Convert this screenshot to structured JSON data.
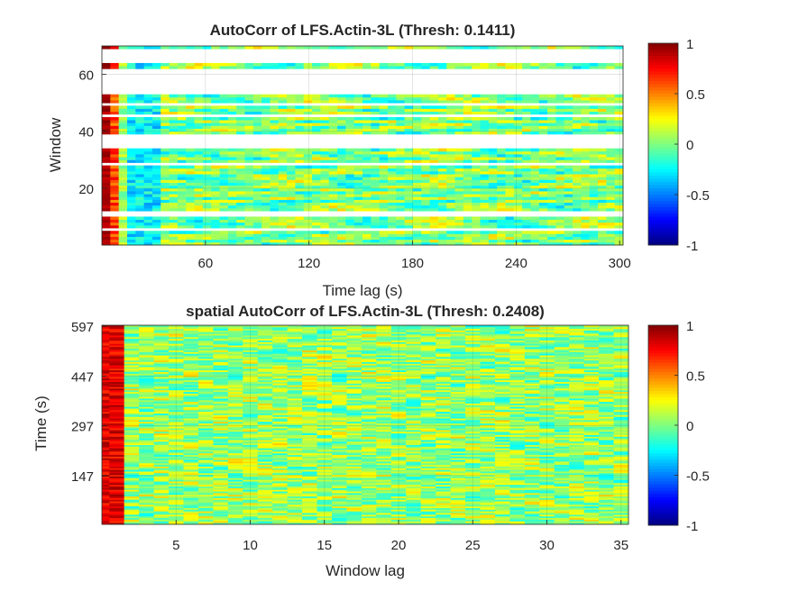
{
  "chart_data": [
    {
      "type": "heatmap",
      "title": "AutoCorr of LFS.Actin-3L (Thresh: 0.1411)",
      "xlabel": "Time lag (s)",
      "ylabel": "Window",
      "xlim": [
        0,
        302
      ],
      "ylim": [
        0,
        70
      ],
      "xticks": [
        60,
        120,
        180,
        240,
        300
      ],
      "yticks": [
        20,
        40,
        60
      ],
      "grid": true,
      "rows": 70,
      "missing_windows": [
        6,
        11,
        12,
        29,
        35,
        36,
        37,
        38,
        39,
        46,
        50,
        54,
        55,
        56,
        57,
        58,
        59,
        60,
        61,
        62,
        65,
        66,
        67,
        68,
        69
      ],
      "colorbar": {
        "ticks": [
          1,
          0.5,
          0,
          -0.5,
          -1
        ],
        "clim": [
          -1,
          1
        ],
        "colormap": "jet"
      }
    },
    {
      "type": "heatmap",
      "title": "spatial AutoCorr of LFS.Actin-3L (Thresh: 0.2408)",
      "xlabel": "Window lag",
      "ylabel": "Time (s)",
      "xlim": [
        0,
        35.5
      ],
      "ylim": [
        0,
        600
      ],
      "xticks": [
        5,
        10,
        15,
        20,
        25,
        30,
        35
      ],
      "yticks": [
        147,
        297,
        447,
        597
      ],
      "grid": true,
      "rows": 120,
      "colorbar": {
        "ticks": [
          1,
          0.5,
          0,
          -0.5,
          -1
        ],
        "clim": [
          -1,
          1
        ],
        "colormap": "jet"
      }
    }
  ]
}
